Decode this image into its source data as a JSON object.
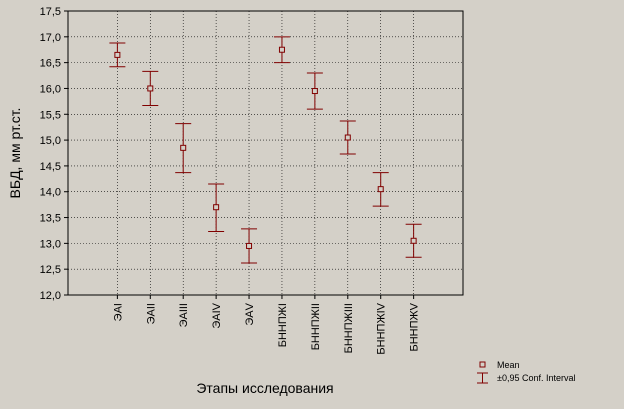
{
  "chart_data": {
    "type": "scatter",
    "categories": [
      "ЭАI",
      "ЭАII",
      "ЭАIII",
      "ЭАIV",
      "ЭАV",
      "БННПЖI",
      "БННПЖII",
      "БННПЖIII",
      "БННПЖIV",
      "БННПЖV"
    ],
    "series": [
      {
        "name": "Mean",
        "values": [
          16.65,
          16.0,
          14.85,
          13.7,
          12.95,
          16.75,
          15.95,
          15.05,
          14.05,
          13.05
        ],
        "ci_low": [
          16.42,
          15.67,
          14.37,
          13.23,
          12.62,
          16.5,
          15.6,
          14.73,
          13.72,
          12.73
        ],
        "ci_high": [
          16.88,
          16.33,
          15.32,
          14.15,
          13.28,
          17.0,
          16.3,
          15.37,
          14.37,
          13.37
        ]
      }
    ],
    "xlabel": "Этапы исследования",
    "ylabel": "ВБД, мм рт.ст.",
    "ylim": [
      12.0,
      17.5
    ],
    "yticks": [
      "12,0",
      "12,5",
      "13,0",
      "13,5",
      "14,0",
      "14,5",
      "15,0",
      "15,5",
      "16,0",
      "16,5",
      "17,0",
      "17,5"
    ],
    "grid": true,
    "legend": {
      "placement": "bottom-right",
      "entries": [
        "Mean",
        "±0,95 Conf. Interval"
      ]
    },
    "colors": {
      "marker": "#800000",
      "grid": "#000000",
      "background": "#d4d0c8"
    }
  }
}
